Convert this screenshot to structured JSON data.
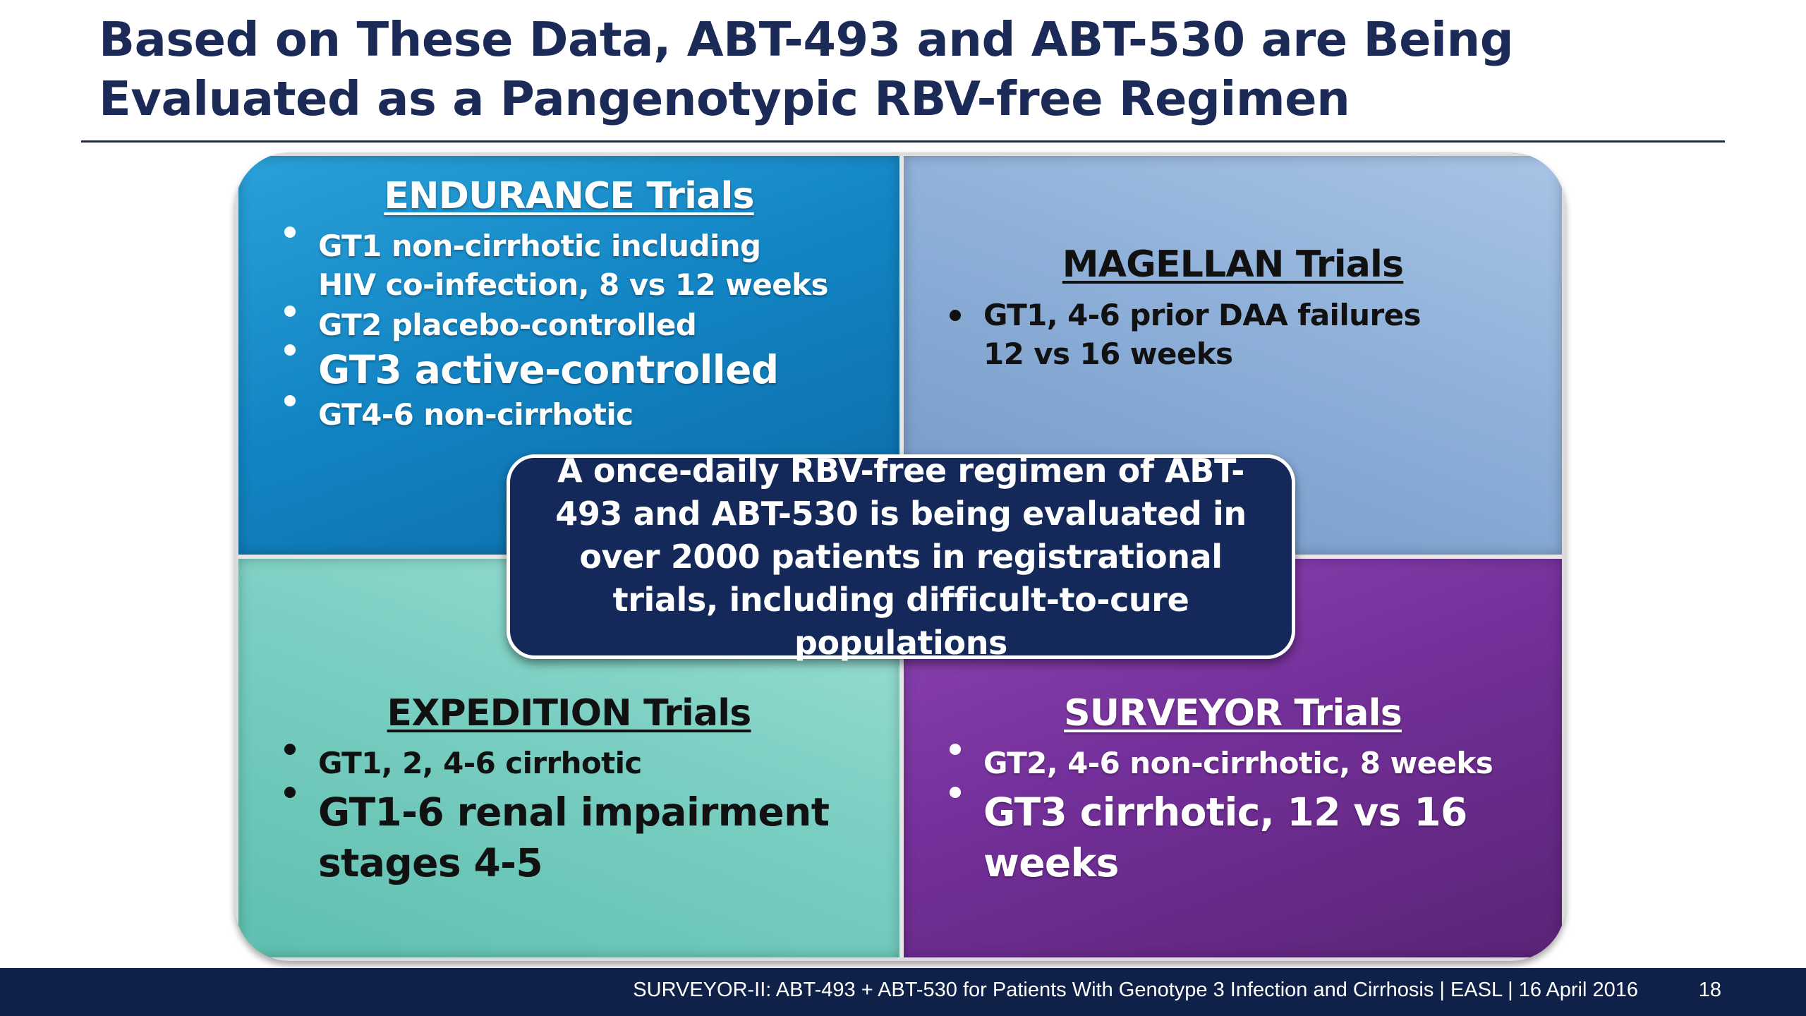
{
  "slide": {
    "title": "Based on These Data, ABT-493 and ABT-530 are Being Evaluated as a Pangenotypic RBV-free Regimen"
  },
  "quadrants": {
    "endurance": {
      "heading": "ENDURANCE Trials",
      "bullets": [
        "GT1 non-cirrhotic including\nHIV co-infection, 8 vs 12 weeks",
        "GT2 placebo-controlled",
        "GT3 active-controlled",
        "GT4-6 non-cirrhotic"
      ]
    },
    "magellan": {
      "heading": "MAGELLAN Trials",
      "bullets": [
        "GT1, 4-6 prior DAA failures\n12 vs 16 weeks"
      ]
    },
    "expedition": {
      "heading": "EXPEDITION Trials",
      "bullets": [
        "GT1, 2, 4-6 cirrhotic",
        "GT1-6 renal impairment\nstages 4-5"
      ]
    },
    "surveyor": {
      "heading": "SURVEYOR Trials",
      "bullets": [
        "GT2, 4-6 non-cirrhotic, 8 weeks",
        "GT3 cirrhotic, 12 vs 16\nweeks"
      ]
    }
  },
  "center_box": {
    "text": "A once-daily RBV-free regimen of ABT-493 and ABT-530 is being evaluated in over 2000 patients in registrational trials, including difficult-to-cure populations"
  },
  "footer": {
    "citation": "SURVEYOR-II: ABT-493 + ABT-530 for Patients With Genotype 3 Infection and Cirrhosis  | EASL | 16 April 2016",
    "page_number": "18"
  },
  "colors": {
    "title": "#1b2a57",
    "endurance": "#1385c4",
    "magellan": "#8dafd8",
    "expedition": "#7acfc2",
    "surveyor": "#74309a",
    "center_box": "#14295a",
    "footer_bar": "#0f2148"
  }
}
